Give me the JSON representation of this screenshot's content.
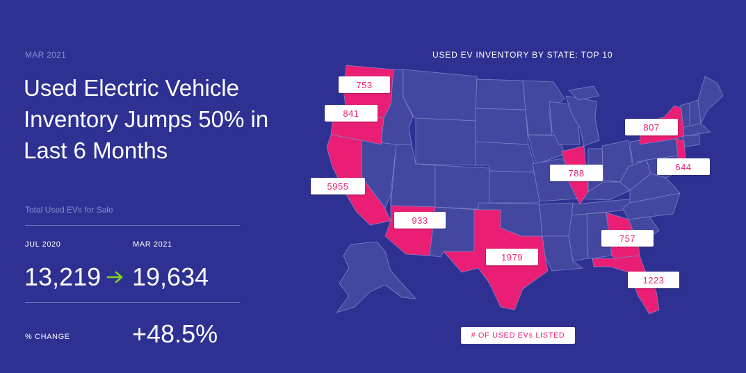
{
  "header": {
    "date": "MAR 2021",
    "headline": "Used Electric Vehicle Inventory Jumps 50% in Last 6 Months"
  },
  "metrics": {
    "label": "Total Used EVs for Sale",
    "from_label": "JUL 2020",
    "to_label": "MAR 2021",
    "from_value": "13,219",
    "to_value": "19,634",
    "change_label": "% CHANGE",
    "change_value": "+48.5%"
  },
  "colors": {
    "background": "#2e3192",
    "state_default": "#44479f",
    "state_highlight": "#e91e74",
    "state_border": "#7f82c8",
    "arrow": "#7ed321"
  },
  "icons": {
    "arrow": "right-arrow-icon"
  },
  "chart_data": {
    "type": "map",
    "title": "USED EV INVENTORY BY STATE: TOP 10",
    "legend": "# OF USED EVs LISTED",
    "states": [
      {
        "state": "WA",
        "value": 753
      },
      {
        "state": "OR",
        "value": 841
      },
      {
        "state": "CA",
        "value": 5955
      },
      {
        "state": "AZ",
        "value": 933
      },
      {
        "state": "TX",
        "value": 1979
      },
      {
        "state": "IL",
        "value": 788
      },
      {
        "state": "NY",
        "value": 807
      },
      {
        "state": "NJ",
        "value": 644
      },
      {
        "state": "GA",
        "value": 757
      },
      {
        "state": "FL",
        "value": 1223
      }
    ]
  }
}
